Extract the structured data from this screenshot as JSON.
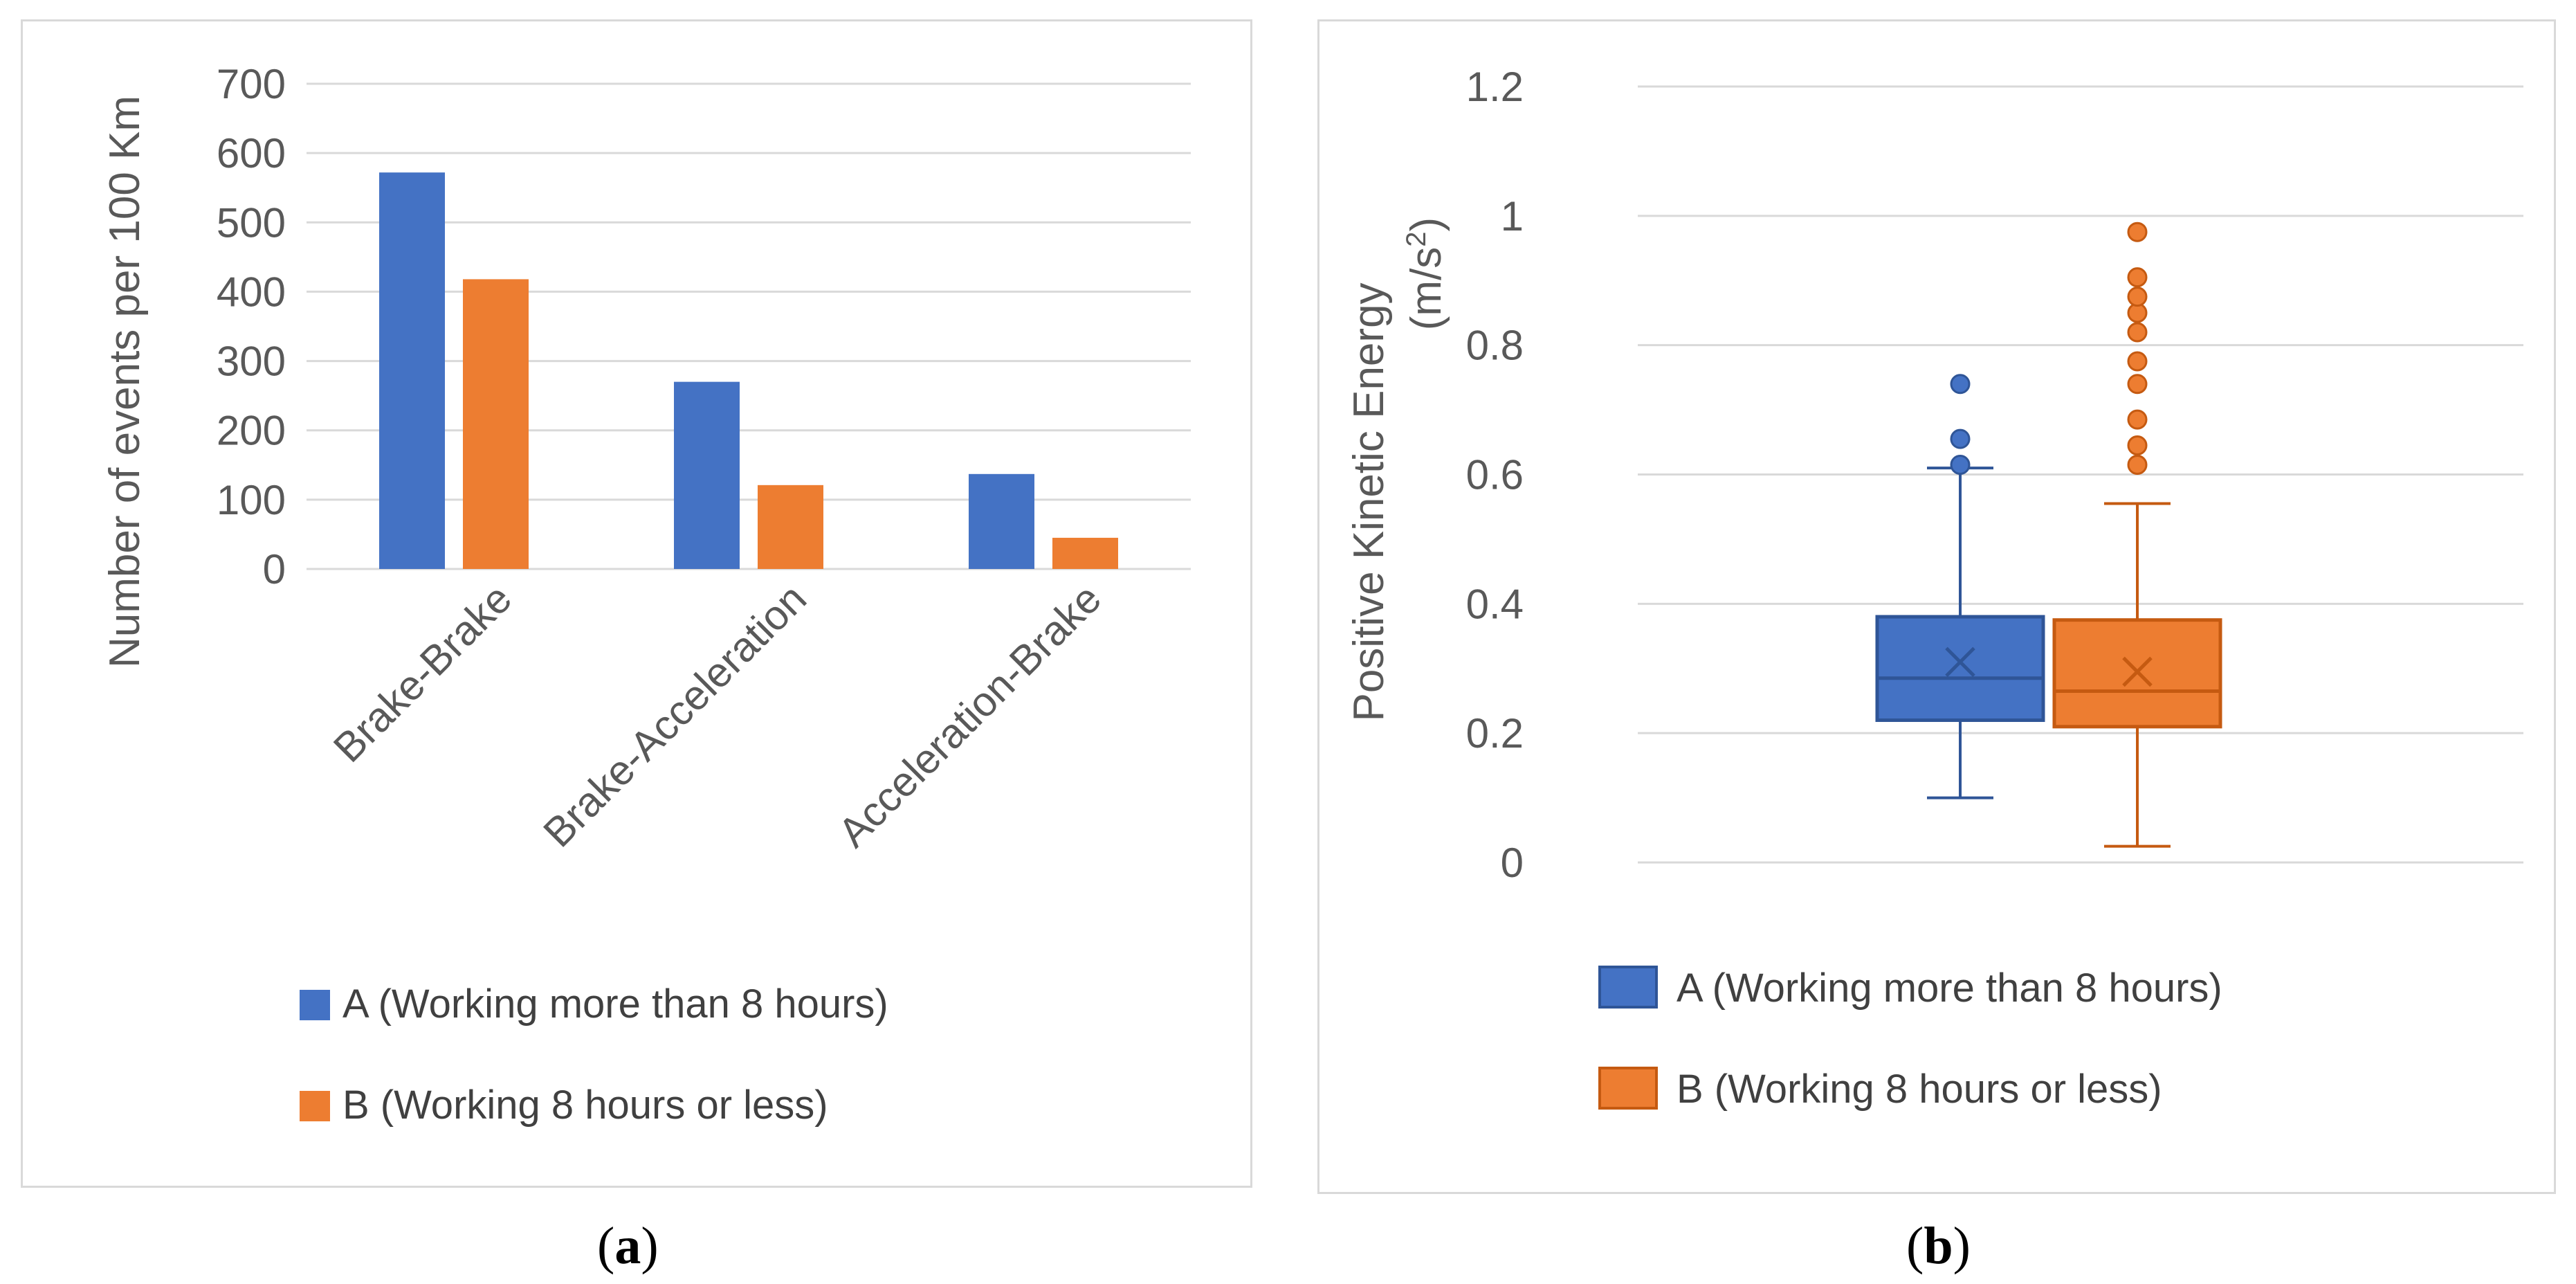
{
  "chart_data": [
    {
      "id": "a",
      "type": "bar",
      "title": "",
      "xlabel": "",
      "ylabel": "Number of events per 100 Km",
      "ylim": [
        0,
        700
      ],
      "yticks": [
        0,
        100,
        200,
        300,
        400,
        500,
        600,
        700
      ],
      "categories": [
        "Brake-Brake",
        "Brake-Acceleration",
        "Acceleration-Brake"
      ],
      "series": [
        {
          "name": "A (Working more than 8 hours)",
          "color": "#4472c4",
          "values": [
            572,
            270,
            137
          ]
        },
        {
          "name": "B (Working 8 hours or less)",
          "color": "#ed7d31",
          "values": [
            418,
            121,
            45
          ]
        }
      ],
      "grid": true,
      "legend": "bottom"
    },
    {
      "id": "b",
      "type": "box",
      "title": "",
      "xlabel": "",
      "ylabel_line1": "Positive Kinetic Energy",
      "ylabel_line2_prefix": "(m/s",
      "ylabel_line2_sup": "2",
      "ylabel_line2_suffix": ")",
      "ylim": [
        0,
        1.2
      ],
      "ytick_values": [
        0,
        0.2,
        0.4,
        0.6,
        0.8,
        1.0,
        1.2
      ],
      "ytick_labels": [
        "0",
        "0.2",
        "0.4",
        "0.6",
        "0.8",
        "1",
        "1.2"
      ],
      "series": [
        {
          "name": "A (Working more than 8 hours)",
          "color": "#4472c4",
          "edge": "#2f5597",
          "min": 0.1,
          "q1": 0.22,
          "median": 0.285,
          "q3": 0.38,
          "max": 0.61,
          "mean": 0.31,
          "outliers": [
            0.615,
            0.655,
            0.74
          ]
        },
        {
          "name": "B (Working 8 hours or less)",
          "color": "#ed7d31",
          "edge": "#c55a11",
          "min": 0.025,
          "q1": 0.21,
          "median": 0.265,
          "q3": 0.375,
          "max": 0.555,
          "mean": 0.295,
          "outliers": [
            0.615,
            0.645,
            0.685,
            0.74,
            0.775,
            0.82,
            0.85,
            0.875,
            0.905,
            0.975
          ]
        }
      ],
      "grid": true,
      "legend": "bottom"
    }
  ],
  "captions": {
    "a_letter": "a",
    "b_letter": "b",
    "open": "(",
    "close": ")"
  }
}
